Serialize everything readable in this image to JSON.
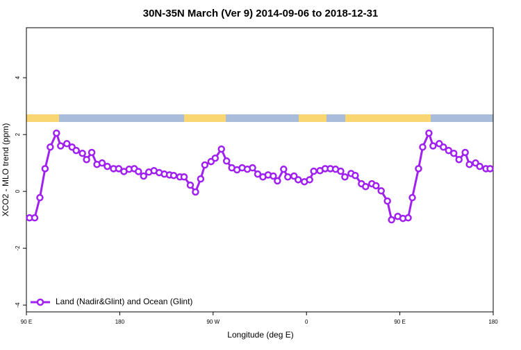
{
  "chart_data": {
    "type": "line",
    "title": "30N-35N March (Ver 9)   2014-09-06 to 2018-12-31",
    "x_label": "Longitude (deg E)",
    "y_label": "XCO2 - MLO trend (ppm)",
    "x": [
      93,
      98,
      103,
      108,
      113,
      119,
      123,
      129,
      134,
      138,
      144,
      148,
      153,
      158,
      163,
      168,
      174,
      179,
      184,
      189,
      194,
      198,
      203,
      208,
      213,
      218,
      223,
      228,
      232,
      238,
      242,
      248,
      253,
      258,
      262,
      268,
      272,
      278,
      283,
      288,
      293,
      298,
      303,
      308,
      313,
      318,
      323,
      328,
      332,
      338,
      342,
      348,
      352,
      358,
      363,
      367,
      373,
      378,
      383,
      388,
      393,
      397,
      403,
      407,
      413,
      417,
      423,
      427,
      432,
      438,
      442,
      448,
      453,
      458,
      462,
      468,
      472,
      478,
      482,
      488,
      492,
      497,
      502,
      507,
      513,
      517,
      523,
      527,
      533,
      537
    ],
    "series": [
      {
        "name": "Land (Nadir&Glint) and Ocean (Glint)",
        "color": "#a020f0",
        "values": [
          -0.93,
          -0.93,
          -0.22,
          0.8,
          1.56,
          2.05,
          1.6,
          1.68,
          1.56,
          1.44,
          1.34,
          1.12,
          1.37,
          0.95,
          1.0,
          0.88,
          0.8,
          0.8,
          0.7,
          0.78,
          0.8,
          0.7,
          0.54,
          0.68,
          0.73,
          0.66,
          0.61,
          0.58,
          0.56,
          0.51,
          0.51,
          0.22,
          -0.02,
          0.44,
          0.93,
          1.05,
          1.17,
          1.49,
          1.07,
          0.83,
          0.76,
          0.83,
          0.78,
          0.83,
          0.61,
          0.51,
          0.58,
          0.54,
          0.37,
          0.78,
          0.51,
          0.54,
          0.41,
          0.34,
          0.41,
          0.71,
          0.73,
          0.8,
          0.8,
          0.78,
          0.71,
          0.51,
          0.63,
          0.56,
          0.27,
          0.17,
          0.27,
          0.2,
          0.02,
          -0.34,
          -1.0,
          -0.88,
          -0.95,
          -0.93,
          -0.22,
          0.8,
          1.56,
          2.05,
          1.6,
          1.68,
          1.56,
          1.44,
          1.34,
          1.12,
          1.37,
          0.95,
          1.0,
          0.88,
          0.8,
          0.8
        ]
      }
    ],
    "xlim": [
      90,
      540
    ],
    "xticks": [
      {
        "value": 90,
        "label": "90 E"
      },
      180,
      {
        "value": 270,
        "label": "90 W"
      },
      {
        "value": 360,
        "label": "0"
      },
      {
        "value": 450,
        "label": "90 E"
      },
      {
        "value": 540,
        "label": "180"
      }
    ],
    "ylim": [
      -4.24,
      5.76
    ],
    "yticks": [
      -4,
      -2,
      0,
      2,
      4
    ],
    "legend": "bottom-left"
  }
}
